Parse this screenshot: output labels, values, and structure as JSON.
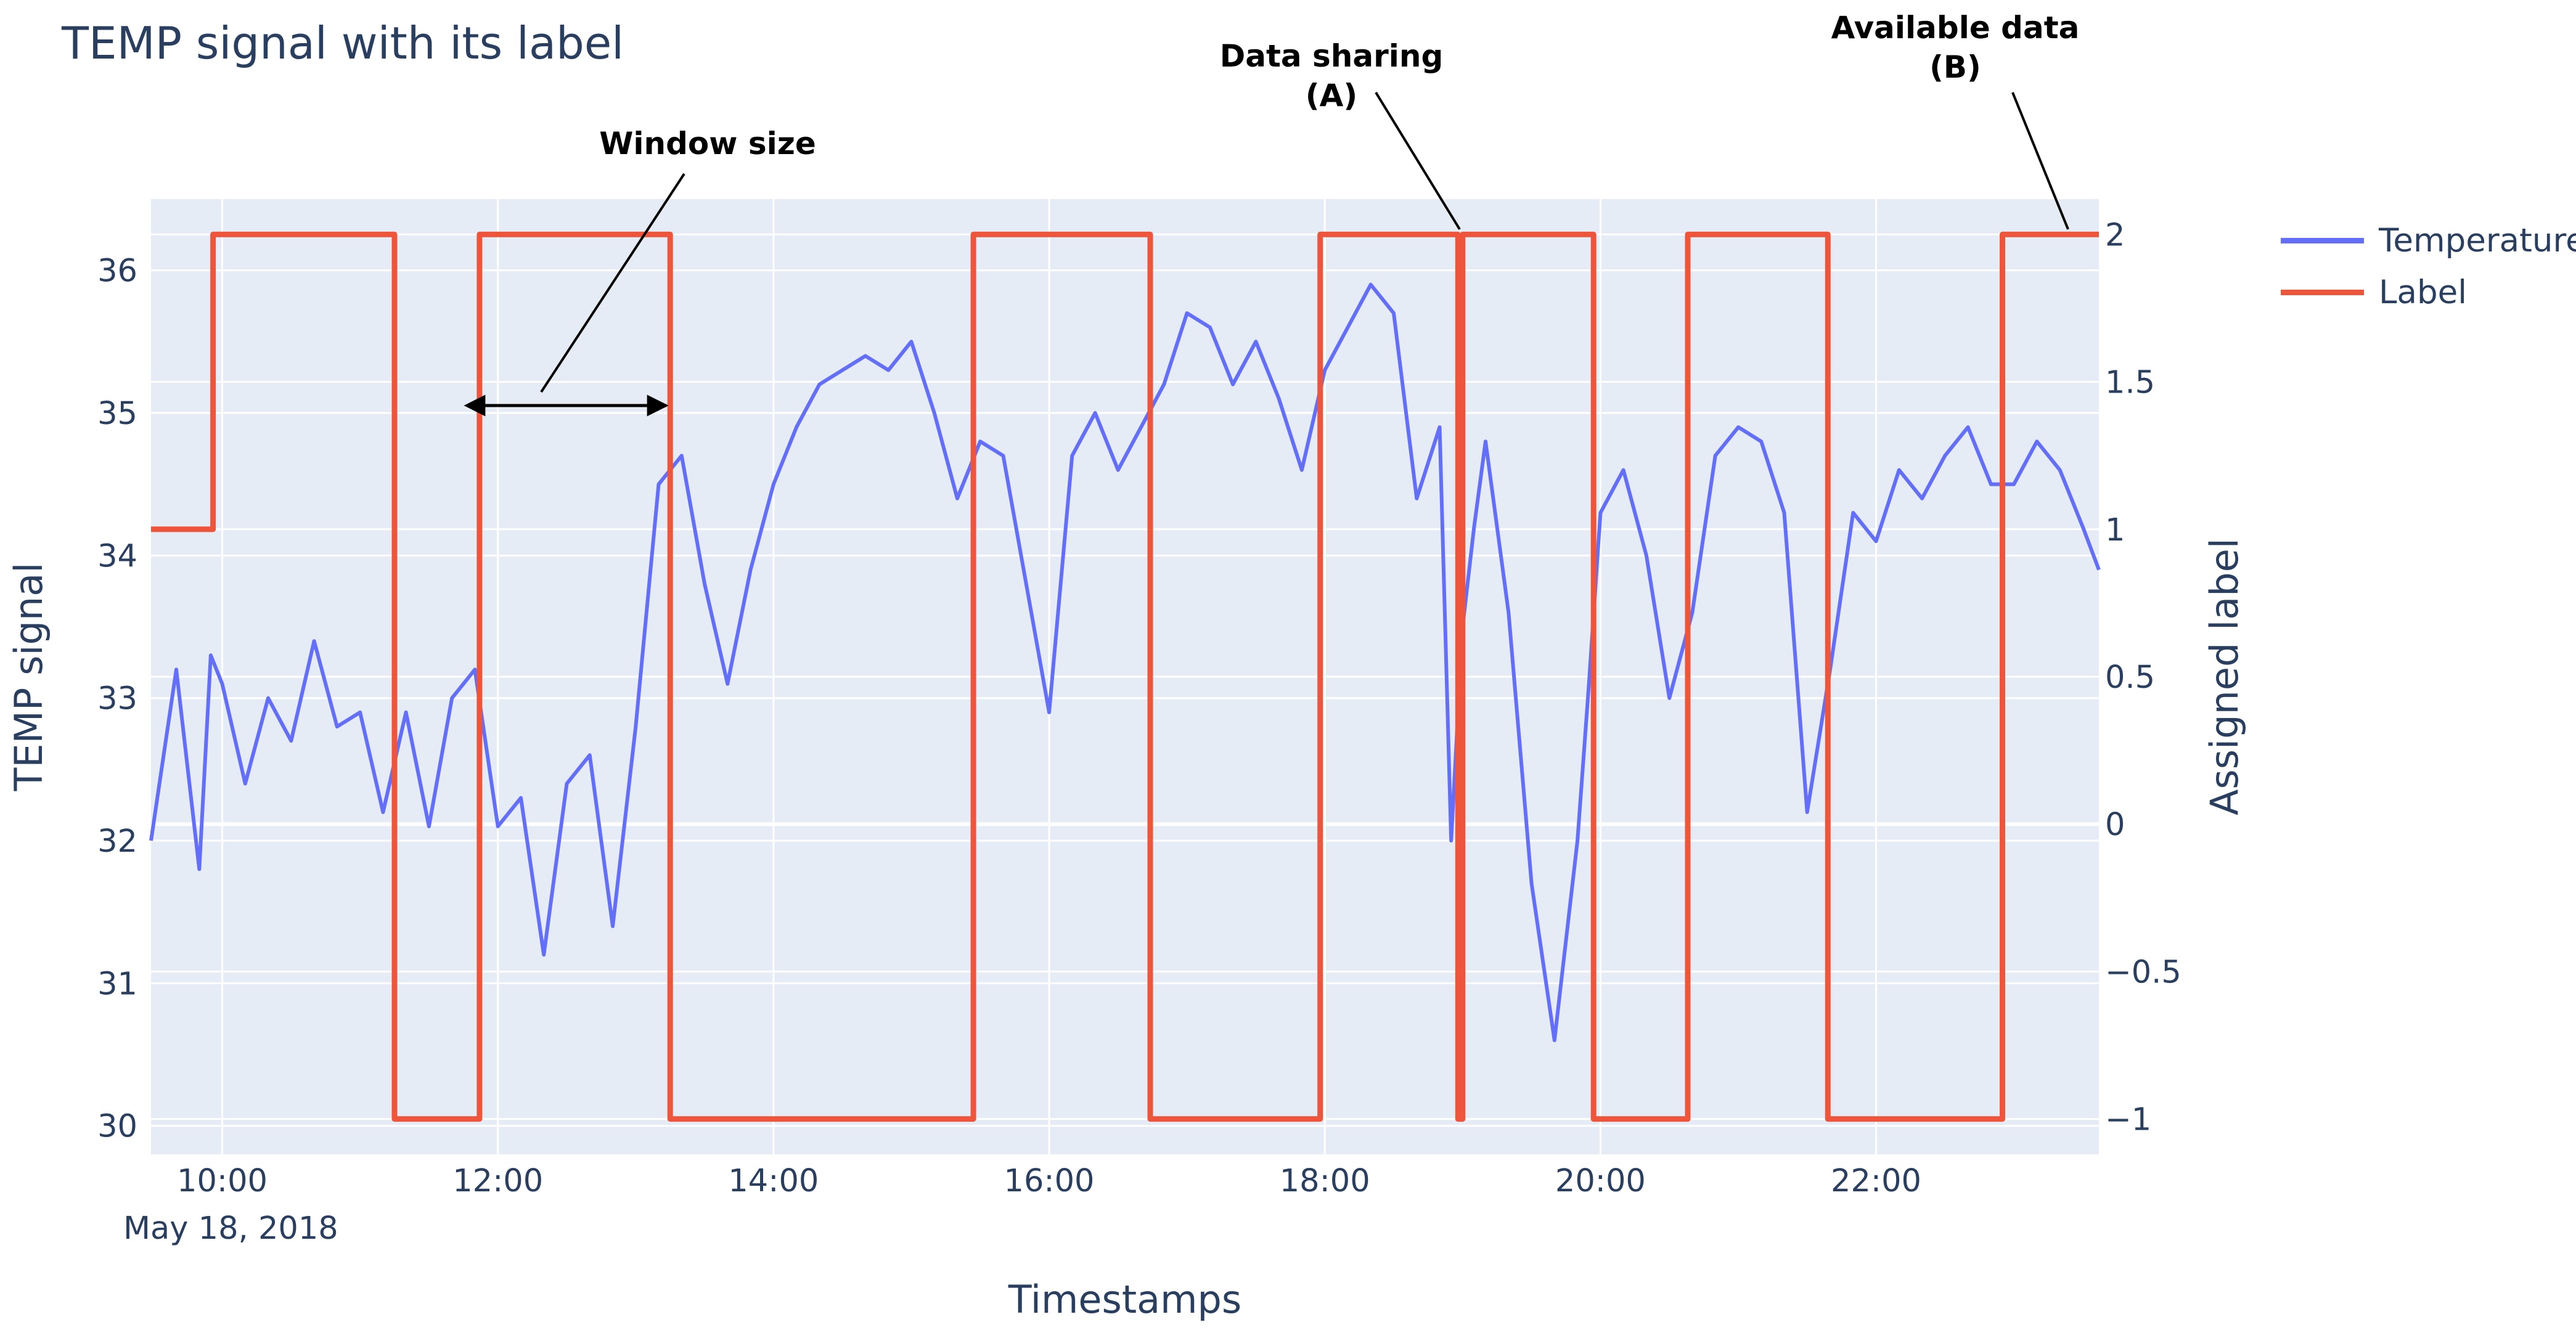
{
  "title": "TEMP signal with its label",
  "chart_data": {
    "type": "line",
    "title": "TEMP signal with its label",
    "xlabel": "Timestamps",
    "ylabel": "TEMP signal",
    "y2label": "Assigned label",
    "date_label": "May 18, 2018",
    "xlim": [
      "09:29",
      "23:37"
    ],
    "ylim": [
      29.8,
      36.5
    ],
    "y2lim": [
      -1.12,
      2.12
    ],
    "grid": true,
    "legend_position": "right",
    "x_ticks": [
      "10:00",
      "12:00",
      "14:00",
      "16:00",
      "18:00",
      "20:00",
      "22:00"
    ],
    "y_ticks": [
      30,
      31,
      32,
      33,
      34,
      35,
      36
    ],
    "y2_ticks": [
      -1,
      -0.5,
      0,
      0.5,
      1,
      1.5,
      2
    ],
    "y2_tick_labels": [
      "−1",
      "−0.5",
      "0",
      "0.5",
      "1",
      "1.5",
      "2"
    ],
    "series": [
      {
        "name": "Temperature",
        "axis": "y",
        "color": "#636efa",
        "x": [
          "09:29",
          "09:40",
          "09:50",
          "09:55",
          "10:00",
          "10:10",
          "10:20",
          "10:30",
          "10:40",
          "10:50",
          "11:00",
          "11:10",
          "11:20",
          "11:30",
          "11:40",
          "11:50",
          "12:00",
          "12:10",
          "12:20",
          "12:30",
          "12:40",
          "12:50",
          "13:00",
          "13:10",
          "13:20",
          "13:30",
          "13:40",
          "13:50",
          "14:00",
          "14:10",
          "14:20",
          "14:30",
          "14:40",
          "14:50",
          "15:00",
          "15:10",
          "15:20",
          "15:30",
          "15:40",
          "15:50",
          "16:00",
          "16:10",
          "16:20",
          "16:30",
          "16:40",
          "16:50",
          "17:00",
          "17:10",
          "17:20",
          "17:30",
          "17:40",
          "17:50",
          "18:00",
          "18:10",
          "18:20",
          "18:30",
          "18:40",
          "18:50",
          "18:55",
          "19:00",
          "19:05",
          "19:10",
          "19:20",
          "19:30",
          "19:40",
          "19:50",
          "19:55",
          "20:00",
          "20:10",
          "20:20",
          "20:30",
          "20:40",
          "20:50",
          "21:00",
          "21:10",
          "21:20",
          "21:30",
          "21:40",
          "21:50",
          "22:00",
          "22:10",
          "22:20",
          "22:30",
          "22:40",
          "22:50",
          "23:00",
          "23:10",
          "23:20",
          "23:30",
          "23:37"
        ],
        "y": [
          32.0,
          33.2,
          31.8,
          33.3,
          33.1,
          32.4,
          33.0,
          32.7,
          33.4,
          32.8,
          32.9,
          32.2,
          32.9,
          32.1,
          33.0,
          33.2,
          32.1,
          32.3,
          31.2,
          32.4,
          32.6,
          31.4,
          32.8,
          34.5,
          34.7,
          33.8,
          33.1,
          33.9,
          34.5,
          34.9,
          35.2,
          35.3,
          35.4,
          35.3,
          35.5,
          35.0,
          34.4,
          34.8,
          34.7,
          33.8,
          32.9,
          34.7,
          35.0,
          34.6,
          34.9,
          35.2,
          35.7,
          35.6,
          35.2,
          35.5,
          35.1,
          34.6,
          35.3,
          35.6,
          35.9,
          35.7,
          34.4,
          34.9,
          32.0,
          33.5,
          34.2,
          34.8,
          33.6,
          31.7,
          30.6,
          32.0,
          33.1,
          34.3,
          34.6,
          34.0,
          33.0,
          33.6,
          34.7,
          34.9,
          34.8,
          34.3,
          32.2,
          33.2,
          34.3,
          34.1,
          34.6,
          34.4,
          34.7,
          34.9,
          34.5,
          34.5,
          34.8,
          34.6,
          34.2,
          33.9
        ]
      },
      {
        "name": "Label",
        "axis": "y2",
        "color": "#ef553b",
        "x": [
          "09:29",
          "09:56",
          "09:56",
          "11:15",
          "11:15",
          "11:52",
          "11:52",
          "13:15",
          "13:15",
          "15:27",
          "15:27",
          "16:44",
          "16:44",
          "17:58",
          "17:58",
          "18:58",
          "18:58",
          "19:00",
          "19:00",
          "19:57",
          "19:57",
          "20:38",
          "20:38",
          "21:39",
          "21:39",
          "22:55",
          "22:55",
          "23:37"
        ],
        "y": [
          1,
          1,
          2,
          2,
          -1,
          -1,
          2,
          2,
          -1,
          -1,
          2,
          2,
          -1,
          -1,
          2,
          2,
          -1,
          -1,
          2,
          2,
          -1,
          -1,
          2,
          2,
          -1,
          -1,
          2,
          2
        ]
      }
    ],
    "annotations": [
      {
        "text": "Window size"
      },
      {
        "text": "Data sharing",
        "text2": "(A)"
      },
      {
        "text": "Available data",
        "text2": "(B)"
      }
    ]
  },
  "legend": {
    "items": [
      {
        "label": "Temperature",
        "color": "#636efa"
      },
      {
        "label": "Label",
        "color": "#ef553b"
      }
    ]
  }
}
